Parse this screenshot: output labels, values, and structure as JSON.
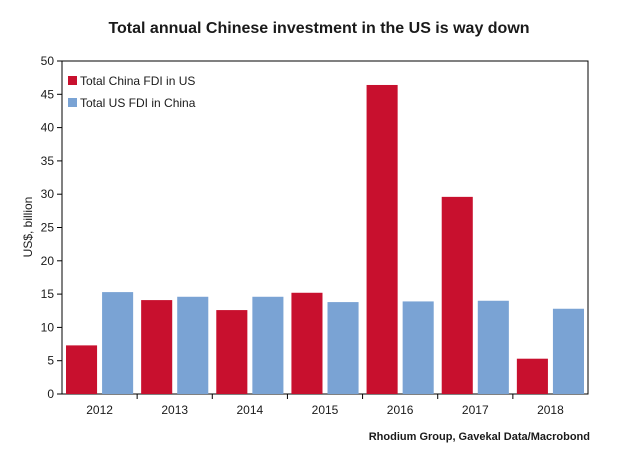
{
  "chart_data": {
    "type": "bar",
    "title": "Total annual Chinese investment in the US is way down",
    "xlabel": "",
    "ylabel": "US$, billion",
    "categories": [
      "2012",
      "2013",
      "2014",
      "2015",
      "2016",
      "2017",
      "2018"
    ],
    "series": [
      {
        "name": "Total China FDI in US",
        "color": "#c8102e",
        "values": [
          7.3,
          14.1,
          12.6,
          15.2,
          46.4,
          29.6,
          5.3
        ]
      },
      {
        "name": "Total US FDI in China",
        "color": "#7aa3d4",
        "values": [
          15.3,
          14.6,
          14.6,
          13.8,
          13.9,
          14.0,
          12.8
        ]
      }
    ],
    "ylim": [
      0,
      50
    ],
    "yticks": [
      "0",
      "5",
      "10",
      "15",
      "20",
      "25",
      "30",
      "35",
      "40",
      "45",
      "50"
    ],
    "grid": false,
    "legend_position": "top-left",
    "source": "Rhodium Group, Gavekal Data/Macrobond"
  }
}
